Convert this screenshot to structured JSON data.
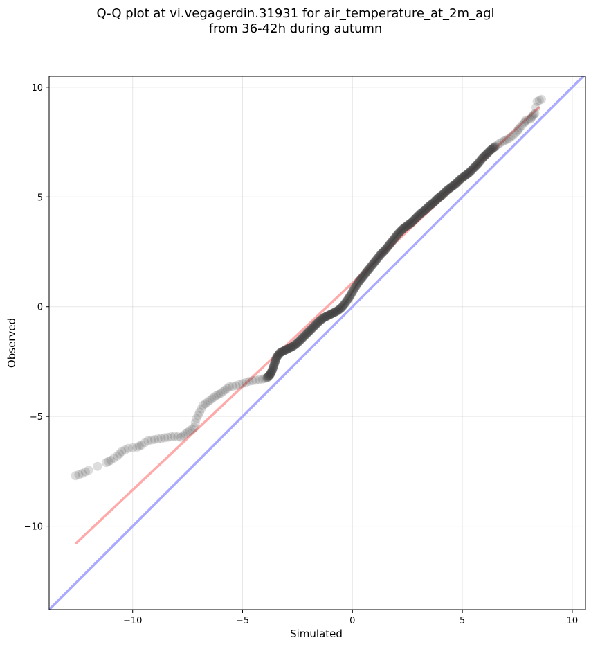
{
  "chart_data": {
    "type": "scatter",
    "title_line1": "Q-Q plot at vi.vegagerdin.31931 for air_temperature_at_2m_agl",
    "title_line2": "from 36-42h during autumn",
    "xlabel": "Simulated",
    "ylabel": "Observed",
    "xlim": [
      -13.8,
      10.6
    ],
    "ylim": [
      -13.8,
      10.5
    ],
    "xticks": [
      -10,
      -5,
      0,
      5,
      10
    ],
    "yticks": [
      -10,
      -5,
      0,
      5,
      10
    ],
    "xtick_labels": [
      "−10",
      "−5",
      "0",
      "5",
      "10"
    ],
    "ytick_labels": [
      "−10",
      "−5",
      "0",
      "5",
      "10"
    ],
    "grid": true,
    "reference_line": {
      "slope": 1,
      "intercept": 0,
      "color": "#aaaaff"
    },
    "fit_line": {
      "x": [
        -12.6,
        8.5
      ],
      "y": [
        -10.8,
        9.1
      ],
      "color": "#ffaaaa"
    },
    "point_color": "#444444",
    "points": [
      [
        -12.6,
        -7.7
      ],
      [
        -12.3,
        -7.6
      ],
      [
        -12.0,
        -7.45
      ],
      [
        -11.2,
        -7.1
      ],
      [
        -11.0,
        -7.0
      ],
      [
        -10.7,
        -6.8
      ],
      [
        -10.5,
        -6.6
      ],
      [
        -10.2,
        -6.45
      ],
      [
        -9.8,
        -6.4
      ],
      [
        -9.6,
        -6.3
      ],
      [
        -9.3,
        -6.1
      ],
      [
        -9.0,
        -6.05
      ],
      [
        -8.7,
        -6.0
      ],
      [
        -8.4,
        -5.95
      ],
      [
        -8.1,
        -5.9
      ],
      [
        -7.8,
        -5.95
      ],
      [
        -7.6,
        -5.8
      ],
      [
        -7.4,
        -5.65
      ],
      [
        -7.2,
        -5.5
      ],
      [
        -7.1,
        -5.1
      ],
      [
        -6.95,
        -4.8
      ],
      [
        -6.8,
        -4.5
      ],
      [
        -6.6,
        -4.35
      ],
      [
        -6.4,
        -4.2
      ],
      [
        -6.2,
        -4.05
      ],
      [
        -6.0,
        -3.95
      ],
      [
        -5.8,
        -3.8
      ],
      [
        -5.6,
        -3.65
      ],
      [
        -5.3,
        -3.6
      ],
      [
        -5.0,
        -3.5
      ],
      [
        -4.7,
        -3.4
      ],
      [
        -4.4,
        -3.35
      ],
      [
        -4.1,
        -3.3
      ],
      [
        -3.9,
        -3.25
      ],
      [
        -3.75,
        -3.1
      ],
      [
        -3.65,
        -2.9
      ],
      [
        -3.55,
        -2.6
      ],
      [
        -3.45,
        -2.3
      ],
      [
        -3.3,
        -2.1
      ],
      [
        -3.1,
        -2.0
      ],
      [
        -2.9,
        -1.9
      ],
      [
        -2.7,
        -1.8
      ],
      [
        -2.5,
        -1.65
      ],
      [
        -2.3,
        -1.45
      ],
      [
        -2.1,
        -1.25
      ],
      [
        -1.9,
        -1.05
      ],
      [
        -1.7,
        -0.85
      ],
      [
        -1.5,
        -0.65
      ],
      [
        -1.3,
        -0.5
      ],
      [
        -1.1,
        -0.4
      ],
      [
        -0.9,
        -0.3
      ],
      [
        -0.7,
        -0.2
      ],
      [
        -0.5,
        -0.05
      ],
      [
        -0.3,
        0.2
      ],
      [
        -0.1,
        0.5
      ],
      [
        0.1,
        0.85
      ],
      [
        0.3,
        1.15
      ],
      [
        0.5,
        1.4
      ],
      [
        0.7,
        1.65
      ],
      [
        0.9,
        1.9
      ],
      [
        1.1,
        2.15
      ],
      [
        1.3,
        2.4
      ],
      [
        1.5,
        2.6
      ],
      [
        1.7,
        2.85
      ],
      [
        1.9,
        3.1
      ],
      [
        2.1,
        3.35
      ],
      [
        2.3,
        3.55
      ],
      [
        2.5,
        3.7
      ],
      [
        2.7,
        3.85
      ],
      [
        2.9,
        4.05
      ],
      [
        3.1,
        4.25
      ],
      [
        3.3,
        4.4
      ],
      [
        3.5,
        4.6
      ],
      [
        3.7,
        4.75
      ],
      [
        3.9,
        4.95
      ],
      [
        4.1,
        5.1
      ],
      [
        4.3,
        5.3
      ],
      [
        4.5,
        5.45
      ],
      [
        4.7,
        5.6
      ],
      [
        4.9,
        5.8
      ],
      [
        5.1,
        5.95
      ],
      [
        5.3,
        6.1
      ],
      [
        5.5,
        6.3
      ],
      [
        5.7,
        6.5
      ],
      [
        5.9,
        6.75
      ],
      [
        6.1,
        6.95
      ],
      [
        6.3,
        7.15
      ],
      [
        6.5,
        7.3
      ],
      [
        6.7,
        7.45
      ],
      [
        6.9,
        7.55
      ],
      [
        7.1,
        7.65
      ],
      [
        7.3,
        7.8
      ],
      [
        7.5,
        8.0
      ],
      [
        7.6,
        8.15
      ],
      [
        7.8,
        8.35
      ],
      [
        7.9,
        8.5
      ],
      [
        8.1,
        8.55
      ],
      [
        8.2,
        8.7
      ],
      [
        8.3,
        8.8
      ],
      [
        8.4,
        9.35
      ],
      [
        8.6,
        9.45
      ]
    ]
  }
}
